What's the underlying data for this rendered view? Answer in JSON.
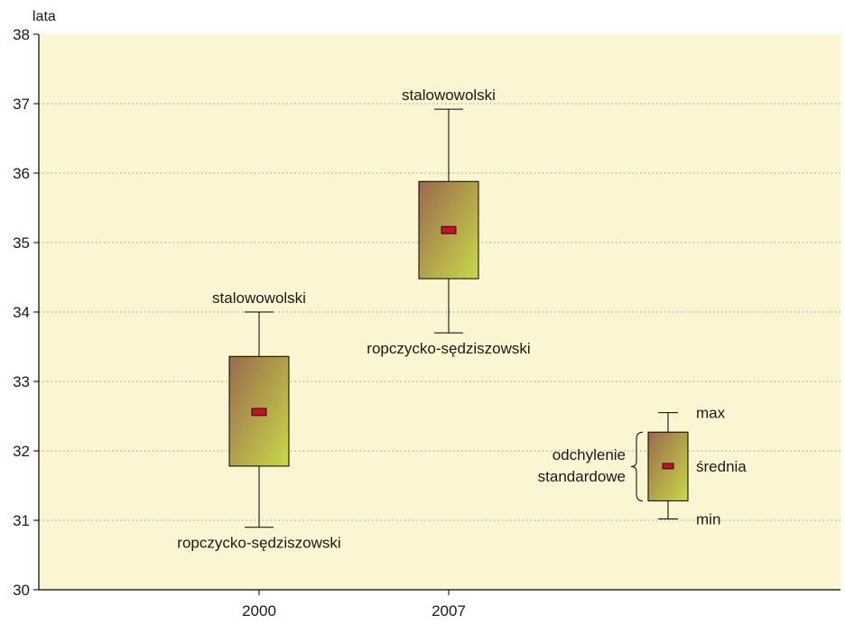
{
  "chart_data": {
    "type": "boxplot",
    "unit_label": "lata",
    "ylim": [
      30,
      38
    ],
    "yticks": [
      "30",
      "31",
      "32",
      "33",
      "34",
      "35",
      "36",
      "37",
      "38"
    ],
    "grid": true,
    "categories": [
      "2000",
      "2007"
    ],
    "boxes": [
      {
        "category": "2000",
        "min": 30.9,
        "sd_low": 31.78,
        "mean": 32.56,
        "sd_high": 33.36,
        "max": 34.0,
        "max_label": "stalowowolski",
        "min_label": "ropczycko-sędziszowski"
      },
      {
        "category": "2007",
        "min": 33.7,
        "sd_low": 34.48,
        "mean": 35.18,
        "sd_high": 35.88,
        "max": 36.92,
        "max_label": "stalowowolski",
        "min_label": "ropczycko-sędziszowski"
      }
    ],
    "legend": {
      "placement": "bottom-right",
      "max": "max",
      "mean": "średnia",
      "min": "min",
      "sd_line1": "odchylenie",
      "sd_line2": "standardowe"
    },
    "colors": {
      "plot_background": "#fbf5d2",
      "box_top": "#9b6a4c",
      "box_bottom": "#c8d94a",
      "mean_marker": "#c8102e",
      "axis": "#000000",
      "grid": "#9a9a9a"
    }
  }
}
